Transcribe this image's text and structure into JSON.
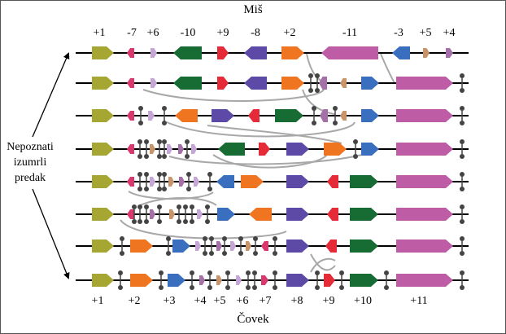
{
  "top_title": "Miš",
  "bottom_title": "Čovek",
  "ancestor_label": [
    "Nepoznati",
    "izumrli",
    "predak"
  ],
  "top_labels": [
    "+1",
    "-7",
    "+6",
    "-10",
    "+9",
    "-8",
    "+2",
    "-11",
    "-3",
    "+5",
    "+4"
  ],
  "bottom_labels": [
    "+1",
    "+2",
    "+3",
    "+4",
    "+5",
    "+6",
    "+7",
    "+8",
    "+9",
    "+10",
    "+11"
  ],
  "colors": {
    "b1": "#a6a633",
    "b2": "#f07521",
    "b3": "#3a6fc0",
    "b4": "#a56fa8",
    "b5": "#c8956b",
    "b6": "#c6a6d6",
    "b7": "#d8386b",
    "b8": "#5c4aa6",
    "b9": "#e52a38",
    "b10": "#176c33",
    "b11": "#be5ca6",
    "line": "#000000",
    "curve": "#a8a8a8",
    "dot": "#444444"
  }
}
